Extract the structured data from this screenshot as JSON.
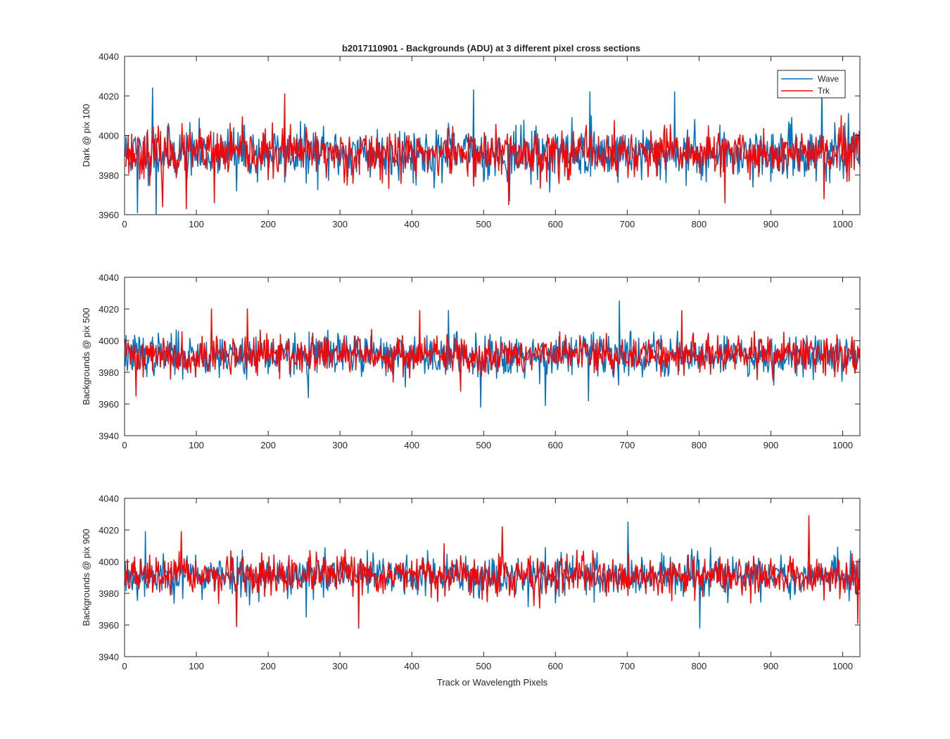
{
  "title": "b2017110901 - Backgrounds (ADU) at 3 different pixel cross sections",
  "legend": {
    "placement": "top-right of first panel",
    "entries": [
      {
        "name": "Wave",
        "color": "#0072BD"
      },
      {
        "name": "Trk",
        "color": "#FF0000"
      }
    ]
  },
  "chart_data": [
    {
      "type": "line",
      "ylabel": "Dark @ pix 100",
      "xlabel": "",
      "xlim": [
        0,
        1024
      ],
      "ylim": [
        3960,
        4040
      ],
      "xticks": [
        0,
        100,
        200,
        300,
        400,
        500,
        600,
        700,
        800,
        900,
        1000
      ],
      "yticks": [
        3960,
        3980,
        4000,
        4020,
        4040
      ],
      "grid": false,
      "series": [
        {
          "name": "Wave",
          "color": "#0072BD",
          "points": 1024,
          "mean": 3991,
          "spread": 6.5,
          "seed": 11,
          "highlights": [
            [
              38,
              4024
            ],
            [
              43,
              3960
            ],
            [
              17,
              3961
            ],
            [
              485,
              4023
            ],
            [
              647,
              4022
            ],
            [
              765,
              4022
            ],
            [
              970,
              4025
            ],
            [
              535,
              3967
            ],
            [
              155,
              3972
            ]
          ]
        },
        {
          "name": "Trk",
          "color": "#FF0000",
          "points": 1024,
          "mean": 3991,
          "spread": 6.0,
          "seed": 23,
          "highlights": [
            [
              222,
              4021
            ],
            [
              85,
              3963
            ],
            [
              534,
              3965
            ],
            [
              835,
              3966
            ],
            [
              973,
              3968
            ],
            [
              124,
              3966
            ],
            [
              52,
              3964
            ]
          ]
        }
      ]
    },
    {
      "type": "line",
      "ylabel": "Backgrounds @ pix 500",
      "xlabel": "",
      "xlim": [
        0,
        1024
      ],
      "ylim": [
        3940,
        4040
      ],
      "xticks": [
        0,
        100,
        200,
        300,
        400,
        500,
        600,
        700,
        800,
        900,
        1000
      ],
      "yticks": [
        3940,
        3960,
        3980,
        4000,
        4020,
        4040
      ],
      "grid": false,
      "series": [
        {
          "name": "Wave",
          "color": "#0072BD",
          "points": 1024,
          "mean": 3991,
          "spread": 6.5,
          "seed": 37,
          "highlights": [
            [
              688,
              4025
            ],
            [
              495,
              3958
            ],
            [
              585,
              3959
            ],
            [
              645,
              3962
            ],
            [
              255,
              3964
            ],
            [
              450,
              4019
            ]
          ]
        },
        {
          "name": "Trk",
          "color": "#FF0000",
          "points": 1024,
          "mean": 3991,
          "spread": 6.0,
          "seed": 41,
          "highlights": [
            [
              120,
              4020
            ],
            [
              170,
              4020
            ],
            [
              410,
              4019
            ],
            [
              15,
              3965
            ],
            [
              467,
              3968
            ],
            [
              775,
              4019
            ]
          ]
        }
      ]
    },
    {
      "type": "line",
      "ylabel": "Backgrounds @ pix 900",
      "xlabel": "Track or Wavelength Pixels",
      "xlim": [
        0,
        1024
      ],
      "ylim": [
        3940,
        4040
      ],
      "xticks": [
        0,
        100,
        200,
        300,
        400,
        500,
        600,
        700,
        800,
        900,
        1000
      ],
      "yticks": [
        3940,
        3960,
        3980,
        4000,
        4020,
        4040
      ],
      "grid": false,
      "series": [
        {
          "name": "Wave",
          "color": "#0072BD",
          "points": 1024,
          "mean": 3991,
          "spread": 6.5,
          "seed": 53,
          "highlights": [
            [
              700,
              4025
            ],
            [
              800,
              3958
            ],
            [
              252,
              3965
            ],
            [
              28,
              4019
            ]
          ]
        },
        {
          "name": "Trk",
          "color": "#FF0000",
          "points": 1024,
          "mean": 3991,
          "spread": 6.0,
          "seed": 67,
          "highlights": [
            [
              952,
              4029
            ],
            [
              155,
              3959
            ],
            [
              325,
              3958
            ],
            [
              1020,
              3961
            ],
            [
              525,
              4022
            ],
            [
              78,
              4019
            ]
          ]
        }
      ]
    }
  ]
}
